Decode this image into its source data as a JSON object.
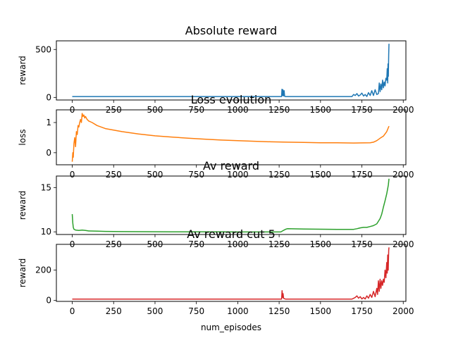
{
  "chart_data": [
    {
      "type": "line",
      "title": "Absolute reward",
      "xlabel": "",
      "ylabel": "reward",
      "color": "#1f77b4",
      "xlim": [
        -96,
        2016
      ],
      "ylim": [
        -27,
        590
      ],
      "xticks": [
        0,
        250,
        500,
        750,
        1000,
        1250,
        1500,
        1750,
        2000
      ],
      "yticks": [
        0,
        500
      ],
      "grid": false,
      "series": [
        {
          "x": [
            0,
            100,
            200,
            300,
            400,
            500,
            600,
            700,
            800,
            900,
            1000,
            1100,
            1200,
            1265,
            1267,
            1270,
            1273,
            1276,
            1280,
            1283,
            1287,
            1300,
            1400,
            1500,
            1600,
            1690,
            1700,
            1710,
            1720,
            1730,
            1740,
            1750,
            1760,
            1770,
            1780,
            1790,
            1800,
            1810,
            1820,
            1830,
            1840,
            1850,
            1855,
            1860,
            1865,
            1870,
            1875,
            1880,
            1885,
            1890,
            1895,
            1900,
            1903,
            1906,
            1908,
            1910,
            1912,
            1914
          ],
          "y": [
            9,
            9,
            9,
            9,
            9,
            9,
            9,
            9,
            9,
            9,
            9,
            9,
            9,
            9,
            85,
            20,
            80,
            15,
            70,
            12,
            9,
            9,
            9,
            9,
            9,
            9,
            30,
            20,
            40,
            15,
            25,
            45,
            15,
            30,
            10,
            50,
            20,
            70,
            20,
            80,
            30,
            40,
            150,
            60,
            140,
            80,
            180,
            100,
            160,
            120,
            200,
            180,
            300,
            150,
            350,
            220,
            450,
            560
          ]
        }
      ]
    },
    {
      "type": "line",
      "title": "Loss evolution",
      "xlabel": "",
      "ylabel": "loss",
      "color": "#ff7f0e",
      "xlim": [
        -96,
        2016
      ],
      "ylim": [
        -0.4,
        1.42
      ],
      "xticks": [
        0,
        250,
        500,
        750,
        1000,
        1250,
        1500,
        1750,
        2000
      ],
      "yticks": [
        0,
        1
      ],
      "grid": false,
      "series": [
        {
          "x": [
            0,
            3,
            6,
            10,
            15,
            20,
            25,
            30,
            35,
            40,
            45,
            50,
            55,
            60,
            65,
            70,
            75,
            80,
            90,
            100,
            120,
            150,
            200,
            250,
            300,
            400,
            500,
            600,
            700,
            800,
            900,
            1000,
            1100,
            1200,
            1300,
            1400,
            1500,
            1600,
            1700,
            1800,
            1820,
            1840,
            1860,
            1880,
            1900,
            1914
          ],
          "y": [
            -0.3,
            0.0,
            -0.15,
            0.3,
            0.5,
            0.2,
            0.7,
            0.6,
            0.9,
            0.85,
            1.0,
            1.1,
            1.0,
            1.3,
            1.2,
            1.25,
            1.15,
            1.2,
            1.1,
            1.05,
            1.0,
            0.9,
            0.8,
            0.75,
            0.7,
            0.62,
            0.56,
            0.52,
            0.48,
            0.45,
            0.42,
            0.4,
            0.38,
            0.36,
            0.35,
            0.34,
            0.33,
            0.33,
            0.32,
            0.33,
            0.35,
            0.4,
            0.48,
            0.55,
            0.7,
            0.88
          ]
        }
      ]
    },
    {
      "type": "line",
      "title": "Av reward",
      "xlabel": "",
      "ylabel": "reward",
      "color": "#2ca02c",
      "xlim": [
        -96,
        2016
      ],
      "ylim": [
        9.7,
        16.3
      ],
      "xticks": [
        0,
        250,
        500,
        750,
        1000,
        1250,
        1500,
        1750,
        2000
      ],
      "yticks": [
        10,
        15
      ],
      "grid": false,
      "series": [
        {
          "x": [
            0,
            3,
            6,
            10,
            20,
            40,
            60,
            80,
            100,
            150,
            200,
            300,
            400,
            500,
            600,
            700,
            800,
            900,
            1000,
            1100,
            1200,
            1260,
            1270,
            1280,
            1290,
            1300,
            1400,
            1500,
            1600,
            1700,
            1720,
            1740,
            1760,
            1780,
            1800,
            1820,
            1840,
            1860,
            1870,
            1880,
            1890,
            1900,
            1910,
            1914
          ],
          "y": [
            12.0,
            11.0,
            10.5,
            10.3,
            10.2,
            10.15,
            10.2,
            10.15,
            10.1,
            10.08,
            10.05,
            10.03,
            10.02,
            10.01,
            10.0,
            10.0,
            10.0,
            10.0,
            9.99,
            9.99,
            9.99,
            9.99,
            10.1,
            10.2,
            10.3,
            10.35,
            10.32,
            10.3,
            10.28,
            10.28,
            10.35,
            10.45,
            10.5,
            10.5,
            10.6,
            10.7,
            10.9,
            11.5,
            12.0,
            12.8,
            13.5,
            14.3,
            15.3,
            16.0
          ]
        }
      ]
    },
    {
      "type": "line",
      "title": "Av reward cut 5",
      "xlabel": "num_episodes",
      "ylabel": "reward",
      "color": "#d62728",
      "xlim": [
        -96,
        2016
      ],
      "ylim": [
        -6,
        370
      ],
      "xticks": [
        0,
        250,
        500,
        750,
        1000,
        1250,
        1500,
        1750,
        2000
      ],
      "yticks": [
        0,
        200
      ],
      "grid": false,
      "series": [
        {
          "x": [
            0,
            100,
            200,
            300,
            400,
            500,
            600,
            700,
            800,
            900,
            1000,
            1100,
            1200,
            1265,
            1268,
            1271,
            1274,
            1277,
            1280,
            1290,
            1300,
            1400,
            1500,
            1600,
            1690,
            1710,
            1720,
            1730,
            1740,
            1750,
            1760,
            1770,
            1780,
            1790,
            1800,
            1810,
            1820,
            1830,
            1840,
            1845,
            1850,
            1855,
            1860,
            1865,
            1870,
            1875,
            1880,
            1885,
            1890,
            1895,
            1900,
            1903,
            1906,
            1909,
            1912,
            1914
          ],
          "y": [
            9,
            9,
            9,
            9,
            9,
            9,
            9,
            9,
            9,
            9,
            9,
            9,
            9,
            9,
            65,
            20,
            45,
            15,
            12,
            9,
            9,
            9,
            9,
            9,
            9,
            20,
            30,
            15,
            25,
            10,
            20,
            10,
            30,
            15,
            40,
            20,
            60,
            25,
            80,
            40,
            130,
            60,
            140,
            80,
            130,
            100,
            140,
            120,
            200,
            150,
            250,
            180,
            300,
            200,
            330,
            350
          ]
        }
      ]
    }
  ]
}
